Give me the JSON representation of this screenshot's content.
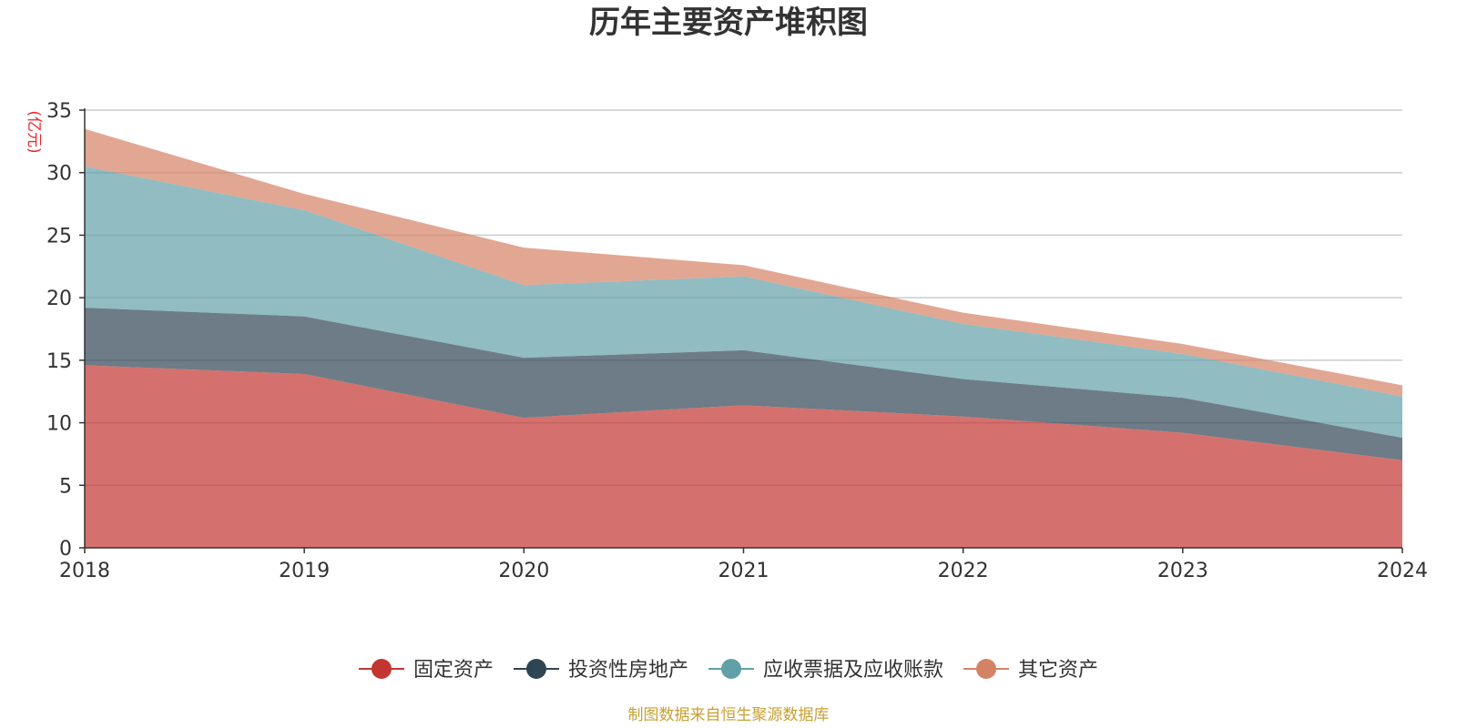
{
  "chart_data": {
    "type": "area",
    "stacked": true,
    "title": "历年主要资产堆积图",
    "unit_label": "(亿元)",
    "x": [
      "2018",
      "2019",
      "2020",
      "2021",
      "2022",
      "2023",
      "2024"
    ],
    "ylim": [
      0,
      35
    ],
    "yticks": [
      0,
      5,
      10,
      15,
      20,
      25,
      30,
      35
    ],
    "grid": true,
    "legend_position": "bottom",
    "series": [
      {
        "name": "固定资产",
        "color": "#c23531",
        "values": [
          14.6,
          13.9,
          10.4,
          11.4,
          10.5,
          9.2,
          7.0
        ]
      },
      {
        "name": "投资性房地产",
        "color": "#2f4554",
        "values": [
          4.6,
          4.6,
          4.8,
          4.4,
          3.0,
          2.8,
          1.8
        ]
      },
      {
        "name": "应收票据及应收账款",
        "color": "#61a0a8",
        "values": [
          11.3,
          8.5,
          5.8,
          5.9,
          4.4,
          3.5,
          3.3
        ]
      },
      {
        "name": "其它资产",
        "color": "#d48265",
        "values": [
          3.0,
          1.3,
          3.0,
          0.9,
          0.9,
          0.8,
          0.9
        ]
      }
    ],
    "source_note": "制图数据来自恒生聚源数据库"
  }
}
